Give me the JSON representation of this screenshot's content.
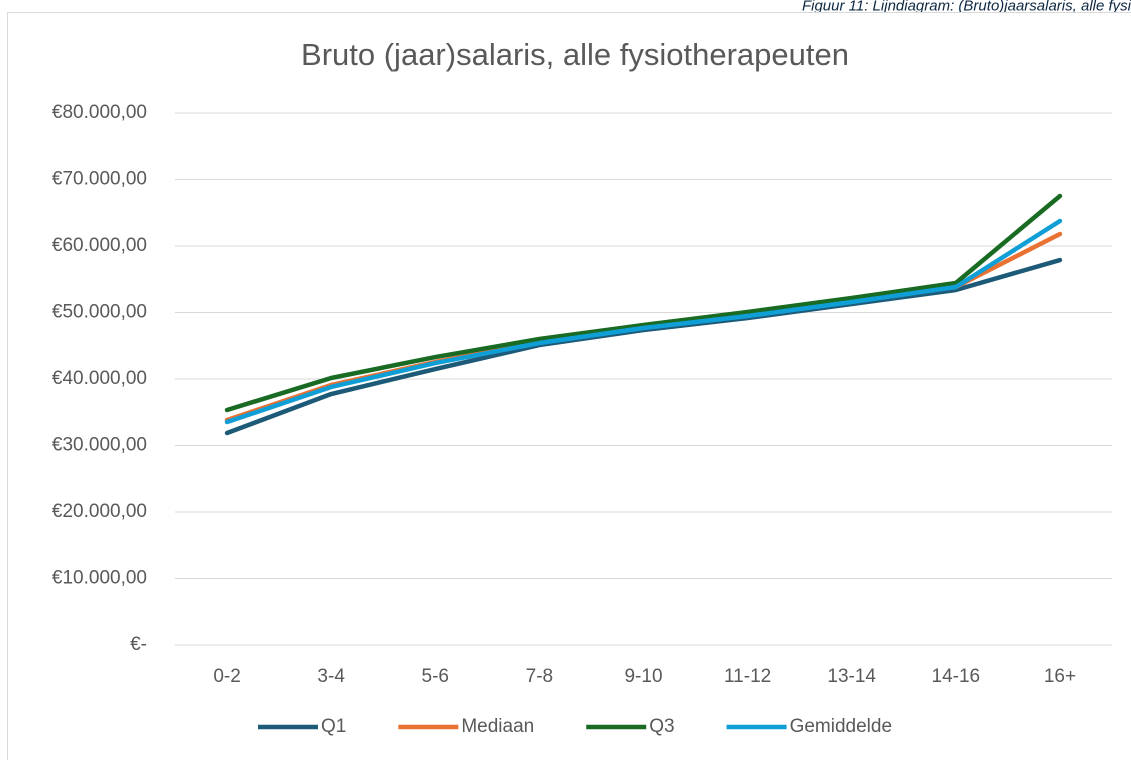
{
  "caption": "Figuur 11: Lijndiagram: (Bruto)jaarsalaris, alle fysi",
  "chart_data": {
    "type": "line",
    "title": "Bruto (jaar)salaris, alle fysiotherapeuten",
    "categories": [
      "0-2",
      "3-4",
      "5-6",
      "7-8",
      "9-10",
      "11-12",
      "13-14",
      "14-16",
      "16+"
    ],
    "series": [
      {
        "name": "Q1",
        "color": "#1d5a78",
        "values": [
          31880,
          37740,
          41500,
          45110,
          47370,
          49170,
          51280,
          53380,
          57890
        ]
      },
      {
        "name": "Mediaan",
        "color": "#e97132",
        "values": [
          33830,
          39100,
          42560,
          45560,
          47820,
          49620,
          51730,
          53830,
          61800
        ]
      },
      {
        "name": "Q3",
        "color": "#196b24",
        "values": [
          35340,
          40150,
          43300,
          46020,
          48120,
          50080,
          52180,
          54440,
          67520
        ]
      },
      {
        "name": "Gemiddelde",
        "color": "#0f9ed5",
        "values": [
          33530,
          38800,
          42400,
          45410,
          47670,
          49470,
          51580,
          53830,
          63760
        ]
      }
    ],
    "ylim": [
      0,
      80000
    ],
    "yticks": [
      {
        "value": 0,
        "label": "€-"
      },
      {
        "value": 10000,
        "label": "€10.000,00"
      },
      {
        "value": 20000,
        "label": "€20.000,00"
      },
      {
        "value": 30000,
        "label": "€30.000,00"
      },
      {
        "value": 40000,
        "label": "€40.000,00"
      },
      {
        "value": 50000,
        "label": "€50.000,00"
      },
      {
        "value": 60000,
        "label": "€60.000,00"
      },
      {
        "value": 70000,
        "label": "€70.000,00"
      },
      {
        "value": 80000,
        "label": "€80.000,00"
      }
    ],
    "grid": true,
    "legend": "bottom"
  }
}
